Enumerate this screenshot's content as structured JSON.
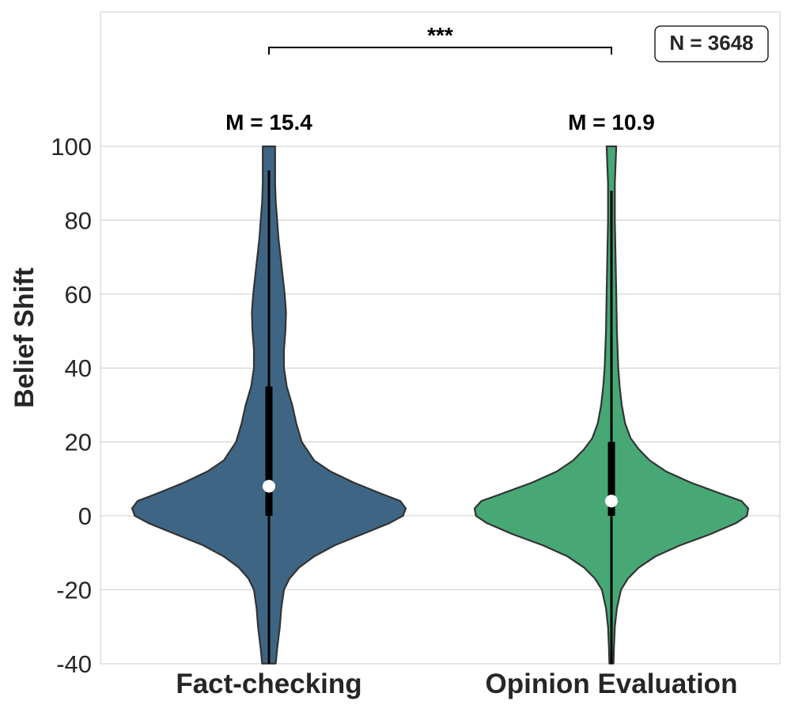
{
  "chart_data": {
    "type": "violin",
    "title": "",
    "xlabel": "",
    "ylabel": "Belief Shift",
    "ylim": [
      -40,
      135
    ],
    "yticks": [
      -40,
      -20,
      0,
      20,
      40,
      60,
      80,
      100
    ],
    "ytick_labels": [
      "-40",
      "-20",
      "0",
      "20",
      "40",
      "60",
      "80",
      "100"
    ],
    "grid": true,
    "categories": [
      "Fact-checking",
      "Opinion Evaluation"
    ],
    "series": [
      {
        "name": "Fact-checking",
        "color": "#3e6684",
        "median": 8,
        "q1": 0,
        "q3": 35,
        "whisker_low": -40,
        "whisker_high": 93.5,
        "mean_label": "M = 15.4",
        "density": [
          [
            -40,
            0.05
          ],
          [
            -36,
            0.06
          ],
          [
            -30,
            0.08
          ],
          [
            -25,
            0.09
          ],
          [
            -20,
            0.11
          ],
          [
            -17,
            0.15
          ],
          [
            -14,
            0.22
          ],
          [
            -11,
            0.33
          ],
          [
            -8,
            0.48
          ],
          [
            -5,
            0.68
          ],
          [
            -2,
            0.88
          ],
          [
            0,
            0.98
          ],
          [
            2,
            1.0
          ],
          [
            4,
            0.96
          ],
          [
            6,
            0.82
          ],
          [
            9,
            0.62
          ],
          [
            12,
            0.45
          ],
          [
            15,
            0.33
          ],
          [
            20,
            0.24
          ],
          [
            25,
            0.2
          ],
          [
            30,
            0.17
          ],
          [
            35,
            0.13
          ],
          [
            40,
            0.11
          ],
          [
            45,
            0.11
          ],
          [
            50,
            0.12
          ],
          [
            55,
            0.125
          ],
          [
            60,
            0.115
          ],
          [
            65,
            0.1
          ],
          [
            70,
            0.085
          ],
          [
            75,
            0.07
          ],
          [
            80,
            0.06
          ],
          [
            85,
            0.05
          ],
          [
            90,
            0.045
          ],
          [
            95,
            0.045
          ],
          [
            100,
            0.045
          ]
        ]
      },
      {
        "name": "Opinion Evaluation",
        "color": "#47a876",
        "median": 4,
        "q1": 0,
        "q3": 20,
        "whisker_low": -40,
        "whisker_high": 88,
        "mean_label": "M = 10.9",
        "density": [
          [
            -40,
            0.015
          ],
          [
            -36,
            0.018
          ],
          [
            -30,
            0.025
          ],
          [
            -25,
            0.04
          ],
          [
            -20,
            0.07
          ],
          [
            -17,
            0.12
          ],
          [
            -14,
            0.2
          ],
          [
            -11,
            0.32
          ],
          [
            -8,
            0.5
          ],
          [
            -5,
            0.72
          ],
          [
            -2,
            0.91
          ],
          [
            0,
            0.99
          ],
          [
            2,
            1.0
          ],
          [
            4,
            0.95
          ],
          [
            6,
            0.8
          ],
          [
            9,
            0.58
          ],
          [
            12,
            0.4
          ],
          [
            15,
            0.28
          ],
          [
            18,
            0.2
          ],
          [
            21,
            0.14
          ],
          [
            25,
            0.1
          ],
          [
            30,
            0.075
          ],
          [
            35,
            0.06
          ],
          [
            40,
            0.05
          ],
          [
            50,
            0.04
          ],
          [
            60,
            0.035
          ],
          [
            70,
            0.03
          ],
          [
            80,
            0.025
          ],
          [
            90,
            0.025
          ],
          [
            95,
            0.03
          ],
          [
            100,
            0.035
          ]
        ]
      }
    ],
    "annotations": {
      "significance": "***",
      "n_label": "N = 3648"
    }
  }
}
